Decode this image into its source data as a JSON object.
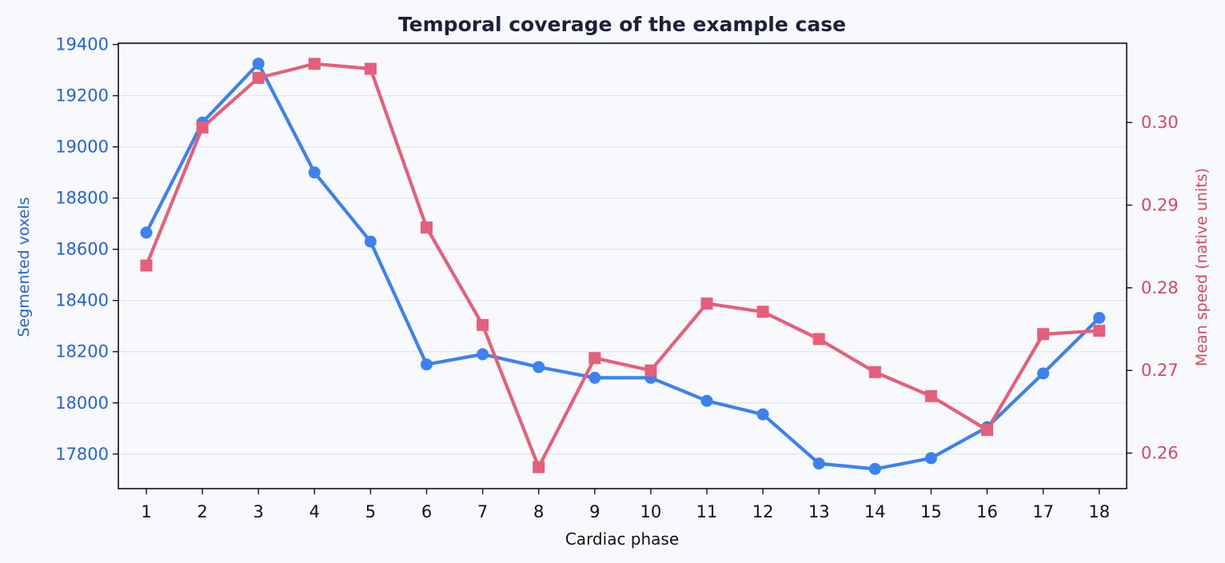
{
  "chart_data": {
    "type": "line",
    "title": "Temporal coverage of the example case",
    "xlabel": "Cardiac phase",
    "ylabel_left": "Segmented voxels",
    "ylabel_right": "Mean speed (native units)",
    "x": [
      1,
      2,
      3,
      4,
      5,
      6,
      7,
      8,
      9,
      10,
      11,
      12,
      13,
      14,
      15,
      16,
      17,
      18
    ],
    "x_tick_labels": [
      "1",
      "2",
      "3",
      "4",
      "5",
      "6",
      "7",
      "8",
      "9",
      "10",
      "11",
      "12",
      "13",
      "14",
      "15",
      "16",
      "17",
      "18"
    ],
    "ylim_left": [
      17665,
      19405
    ],
    "ylim_right": [
      0.2557,
      0.3096
    ],
    "y_ticks_left": [
      "17800",
      "18000",
      "18200",
      "18400",
      "18600",
      "18800",
      "19000",
      "19200",
      "19400"
    ],
    "y_ticks_right": [
      "0.26",
      "0.27",
      "0.28",
      "0.29",
      "0.30"
    ],
    "grid": "horizontal",
    "series": [
      {
        "axis": "left",
        "color": "#3b82f0",
        "marker": "circle",
        "values": [
          18665,
          19095,
          19325,
          18900,
          18630,
          18150,
          18190,
          18140,
          18098,
          18098,
          18008,
          17955,
          17763,
          17742,
          17784,
          17905,
          18115,
          18332
        ]
      },
      {
        "axis": "right",
        "color": "#e55f7a",
        "marker": "square",
        "values": [
          0.2827,
          0.2994,
          0.3054,
          0.3071,
          0.3065,
          0.2873,
          0.2755,
          0.2583,
          0.2715,
          0.27,
          0.2781,
          0.2771,
          0.2738,
          0.2698,
          0.2669,
          0.2628,
          0.2744,
          0.2748
        ]
      }
    ]
  }
}
